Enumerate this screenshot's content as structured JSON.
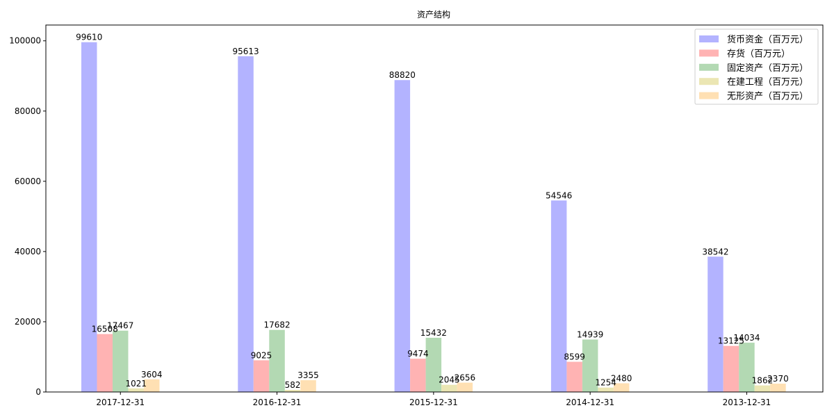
{
  "chart_data": {
    "type": "bar",
    "title": "资产结构",
    "xlabel": "",
    "ylabel": "",
    "categories": [
      "2017-12-31",
      "2016-12-31",
      "2015-12-31",
      "2014-12-31",
      "2013-12-31"
    ],
    "ylim": [
      0,
      104500
    ],
    "yticks": [
      0,
      20000,
      40000,
      60000,
      80000,
      100000
    ],
    "legend_position": "top-right",
    "grid": false,
    "series": [
      {
        "name": "货币资金（百万元）",
        "color": "#b3b3ff",
        "values": [
          99610,
          95613,
          88820,
          54546,
          38542
        ]
      },
      {
        "name": "存货（百万元）",
        "color": "#ffb3b3",
        "values": [
          16508,
          9025,
          9474,
          8599,
          13125
        ]
      },
      {
        "name": "固定资产（百万元）",
        "color": "#b3d9b3",
        "values": [
          17467,
          17682,
          15432,
          14939,
          14034
        ]
      },
      {
        "name": "在建工程（百万元）",
        "color": "#ebe6b3",
        "values": [
          1021,
          582,
          2045,
          1254,
          1862
        ]
      },
      {
        "name": "无形资产（百万元）",
        "color": "#ffe0b3",
        "values": [
          3604,
          3355,
          2656,
          2480,
          2370
        ]
      }
    ]
  }
}
